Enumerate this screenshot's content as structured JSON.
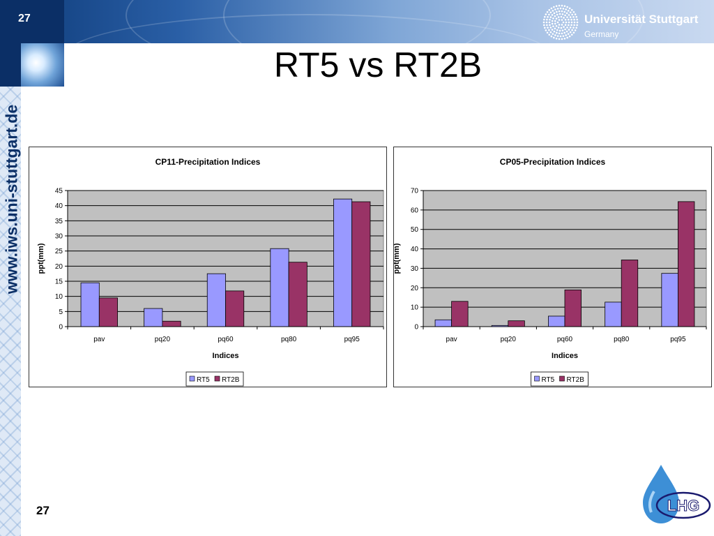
{
  "slide": {
    "number": "27",
    "title": "RT5 vs RT2B",
    "side_url": "www.iws.uni-stuttgart.de",
    "university_name": "Universität Stuttgart",
    "university_country": "Germany",
    "lhg_logo_text": "LHG",
    "colors": {
      "banner": "#1b4b8c",
      "rt5": "#9999ff",
      "rt2b": "#993366",
      "plot_bg": "#c0c0c0"
    }
  },
  "chart_data": [
    {
      "type": "bar",
      "title": "CP11-Precipitation Indices",
      "xlabel": "Indices",
      "ylabel": "ppt(mm)",
      "categories": [
        "pav",
        "pq20",
        "pq60",
        "pq80",
        "pq95"
      ],
      "series": [
        {
          "name": "RT5",
          "values": [
            14.5,
            6,
            17.5,
            25.8,
            42.2
          ]
        },
        {
          "name": "RT2B",
          "values": [
            9.5,
            1.8,
            11.8,
            21.3,
            41.3
          ]
        }
      ],
      "ylim": [
        0,
        45
      ],
      "yticks": [
        "0",
        "5",
        "10",
        "15",
        "20",
        "25",
        "30",
        "35",
        "40",
        "45"
      ],
      "grid": true,
      "legend": "bottom"
    },
    {
      "type": "bar",
      "title": "CP05-Precipitation Indices",
      "xlabel": "Indices",
      "ylabel": "ppt(mm)",
      "categories": [
        "pav",
        "pq20",
        "pq60",
        "pq80",
        "pq95"
      ],
      "series": [
        {
          "name": "RT5",
          "values": [
            3.5,
            0.6,
            5.4,
            12.6,
            27.4
          ]
        },
        {
          "name": "RT2B",
          "values": [
            13,
            3,
            18.9,
            34.3,
            64.3
          ]
        }
      ],
      "ylim": [
        0,
        70
      ],
      "yticks": [
        "0",
        "10",
        "20",
        "30",
        "40",
        "50",
        "60",
        "70"
      ],
      "grid": true,
      "legend": "bottom"
    }
  ]
}
